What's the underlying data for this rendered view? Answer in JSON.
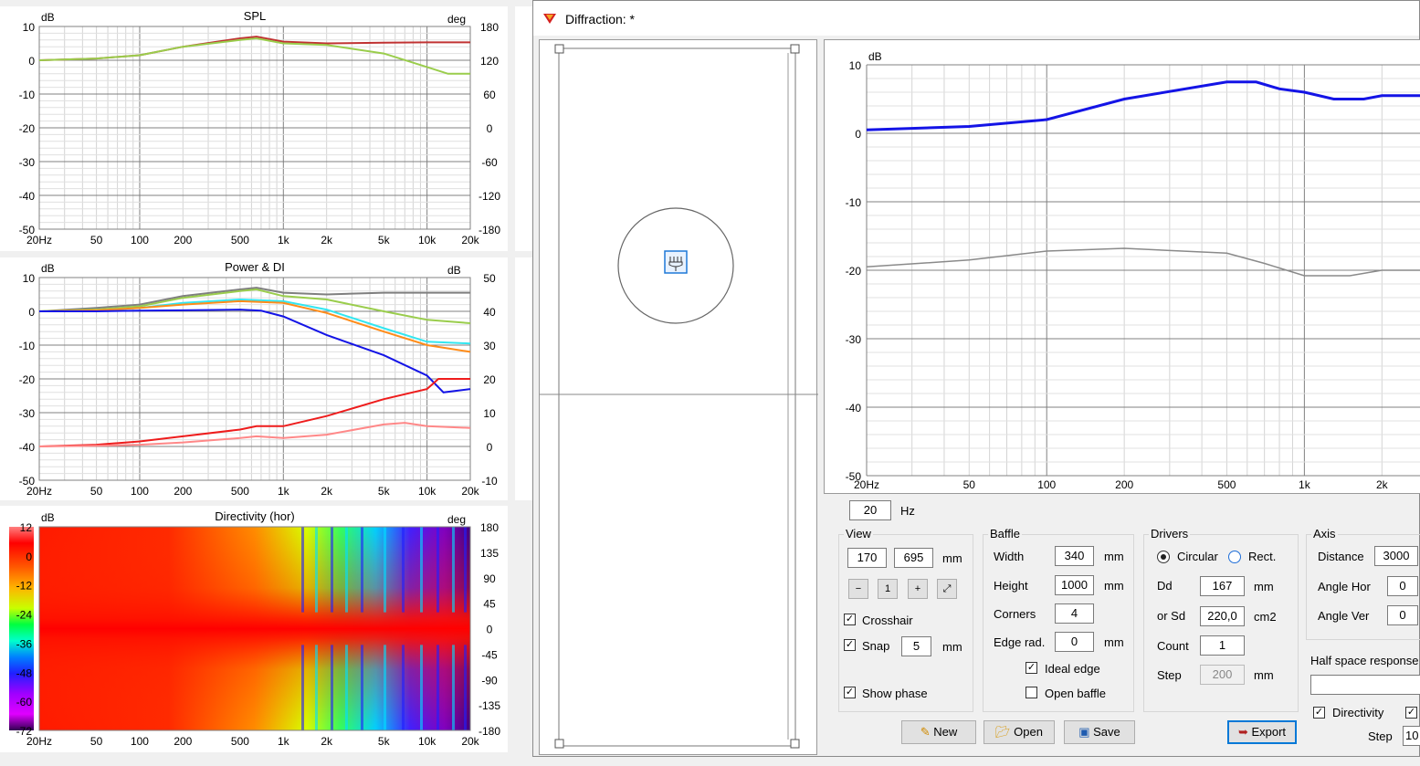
{
  "colors": {
    "red": "#c03232",
    "green": "#9acd4c",
    "blue": "#1414e6",
    "gray": "#7f7f7f",
    "cyan": "#33e6f0",
    "orange": "#ff8c1a",
    "brightred": "#ee1c1c",
    "pink": "#ff8888"
  },
  "freq_ticks": [
    "20Hz",
    "50",
    "100",
    "200",
    "500",
    "1k",
    "2k",
    "5k",
    "10k",
    "20k"
  ],
  "spl": {
    "title": "SPL",
    "left_unit": "dB",
    "right_unit": "deg",
    "y_ticks": [
      "10",
      "0",
      "-10",
      "-20",
      "-30",
      "-40",
      "-50"
    ],
    "phase_ticks": [
      "180",
      "120",
      "60",
      "0",
      "-60",
      "-120",
      "-180"
    ]
  },
  "power": {
    "title": "Power & DI",
    "left_unit": "dB",
    "right_unit": "dB",
    "y_ticks": [
      "10",
      "0",
      "-10",
      "-20",
      "-30",
      "-40",
      "-50"
    ],
    "di_ticks": [
      "50",
      "40",
      "30",
      "20",
      "10",
      "0",
      "-10"
    ]
  },
  "directivity": {
    "title": "Directivity (hor)",
    "left_unit": "dB",
    "right_unit": "deg",
    "scale_ticks": [
      "12",
      "0",
      "-12",
      "-24",
      "-36",
      "-48",
      "-60",
      "-72"
    ],
    "angle_ticks": [
      "180",
      "135",
      "90",
      "45",
      "0",
      "-45",
      "-90",
      "-135",
      "-180"
    ]
  },
  "window": {
    "title": "Diffraction: *",
    "plot": {
      "unit": "dB",
      "y_ticks": [
        "10",
        "0",
        "-10",
        "-20",
        "-30",
        "-40",
        "-50"
      ],
      "x_ticks": [
        "20Hz",
        "50",
        "100",
        "200",
        "500",
        "1k",
        "2k"
      ]
    },
    "freq_value": "20",
    "freq_unit": "Hz",
    "view": {
      "label": "View",
      "x": "170",
      "y": "695",
      "unit": "mm",
      "crosshair": "Crosshair",
      "snap": "Snap",
      "snap_value": "5",
      "snap_unit": "mm",
      "show_phase": "Show phase"
    },
    "baffle": {
      "label": "Baffle",
      "width_label": "Width",
      "width": "340",
      "height_label": "Height",
      "height": "1000",
      "corners_label": "Corners",
      "corners": "4",
      "edge_label": "Edge rad.",
      "edge": "0",
      "unit": "mm",
      "ideal_edge": "Ideal edge",
      "open_baffle": "Open baffle"
    },
    "drivers": {
      "label": "Drivers",
      "circular": "Circular",
      "rect": "Rect.",
      "dd_label": "Dd",
      "dd": "167",
      "dd_unit": "mm",
      "sd_label": "or Sd",
      "sd": "220,0",
      "sd_unit": "cm2",
      "count_label": "Count",
      "count": "1",
      "step_label": "Step",
      "step": "200",
      "step_unit": "mm"
    },
    "axis": {
      "label": "Axis",
      "distance_label": "Distance",
      "distance": "3000",
      "hor_label": "Angle Hor",
      "hor": "0",
      "ver_label": "Angle Ver",
      "ver": "0",
      "half_space": "Half space response",
      "directivity": "Directivity",
      "step_label": "Step",
      "step": "10"
    },
    "buttons": {
      "new": "New",
      "open": "Open",
      "save": "Save",
      "export": "Export"
    }
  },
  "chart_data": [
    {
      "type": "line",
      "title": "SPL",
      "xlabel": "",
      "ylabel": "dB",
      "x_scale": "log",
      "xlim": [
        20,
        20000
      ],
      "ylim": [
        -50,
        10
      ],
      "series": [
        {
          "color": "#c03232",
          "x": [
            20,
            50,
            100,
            200,
            500,
            650,
            1000,
            2000,
            5000,
            10000,
            20000
          ],
          "y": [
            0,
            0.5,
            1.5,
            4,
            6.5,
            7,
            5.5,
            5,
            5.2,
            5.3,
            5.3
          ]
        },
        {
          "color": "#9acd4c",
          "x": [
            20,
            50,
            100,
            200,
            500,
            650,
            1000,
            2000,
            5000,
            10000,
            14000,
            20000
          ],
          "y": [
            0,
            0.5,
            1.5,
            4,
            6,
            6.5,
            5,
            4.5,
            2,
            -2,
            -4,
            -4
          ]
        }
      ]
    },
    {
      "type": "line",
      "title": "Power & DI",
      "xlabel": "",
      "ylabel": "dB",
      "x_scale": "log",
      "xlim": [
        20,
        20000
      ],
      "ylim": [
        -50,
        10
      ],
      "series": [
        {
          "color": "#7f7f7f",
          "x": [
            20,
            50,
            100,
            200,
            500,
            650,
            1000,
            2000,
            5000,
            10000,
            20000
          ],
          "y": [
            0,
            1,
            2,
            4.5,
            6.5,
            7,
            5.5,
            5,
            5.5,
            5.5,
            5.5
          ]
        },
        {
          "color": "#9acd4c",
          "x": [
            20,
            50,
            100,
            200,
            500,
            650,
            1000,
            2000,
            5000,
            10000,
            20000
          ],
          "y": [
            0,
            0.5,
            1.5,
            4,
            6,
            6.5,
            4.5,
            3.5,
            0,
            -2.5,
            -3.5
          ]
        },
        {
          "color": "#33e6f0",
          "x": [
            20,
            50,
            100,
            200,
            500,
            1000,
            2000,
            5000,
            10000,
            20000
          ],
          "y": [
            0,
            0.3,
            1,
            2.5,
            3.5,
            3,
            0.5,
            -5,
            -9,
            -9.5
          ]
        },
        {
          "color": "#ff8c1a",
          "x": [
            20,
            50,
            100,
            200,
            500,
            1000,
            2000,
            5000,
            10000,
            20000
          ],
          "y": [
            0,
            0.3,
            1,
            2,
            3,
            2.5,
            -0.5,
            -6,
            -10,
            -12
          ]
        },
        {
          "color": "#1414e6",
          "x": [
            20,
            50,
            100,
            200,
            500,
            700,
            1000,
            2000,
            5000,
            10000,
            13000,
            20000
          ],
          "y": [
            0,
            0,
            0.2,
            0.3,
            0.5,
            0.2,
            -1.5,
            -7,
            -13,
            -19,
            -24,
            -23
          ]
        },
        {
          "color": "#ee1c1c",
          "x": [
            20,
            50,
            100,
            200,
            500,
            650,
            1000,
            2000,
            5000,
            10000,
            12000,
            20000
          ],
          "y": [
            -40,
            -39.5,
            -38.5,
            -37,
            -35,
            -34,
            -34,
            -31,
            -26,
            -23,
            -20,
            -20
          ]
        },
        {
          "color": "#ff8888",
          "x": [
            20,
            50,
            100,
            200,
            500,
            650,
            1000,
            2000,
            5000,
            7000,
            10000,
            20000
          ],
          "y": [
            -40,
            -39.8,
            -39.5,
            -38.8,
            -37.5,
            -37,
            -37.5,
            -36.5,
            -33.5,
            -33,
            -34,
            -34.5
          ]
        }
      ]
    },
    {
      "type": "heatmap",
      "title": "Directivity (hor)",
      "xlabel": "",
      "ylabel": "deg",
      "x_scale": "log",
      "xlim": [
        20,
        20000
      ],
      "ylim": [
        -180,
        180
      ],
      "value_range": [
        -72,
        12
      ]
    },
    {
      "type": "line",
      "title": "",
      "xlabel": "",
      "ylabel": "dB",
      "x_scale": "log",
      "xlim": [
        20,
        3000
      ],
      "ylim": [
        -50,
        10
      ],
      "series": [
        {
          "color": "#1414e6",
          "x": [
            20,
            50,
            100,
            200,
            500,
            650,
            800,
            1000,
            1300,
            1700,
            2000,
            3000
          ],
          "y": [
            0.5,
            1,
            2,
            5,
            7.5,
            7.5,
            6.5,
            6,
            5,
            5,
            5.5,
            5.5
          ]
        },
        {
          "color": "#8a8a8a",
          "x": [
            20,
            50,
            100,
            200,
            500,
            700,
            1000,
            1500,
            2000,
            3000
          ],
          "y": [
            -19.5,
            -18.5,
            -17.2,
            -16.8,
            -17.5,
            -19,
            -20.8,
            -20.8,
            -20,
            -20
          ]
        }
      ]
    }
  ]
}
